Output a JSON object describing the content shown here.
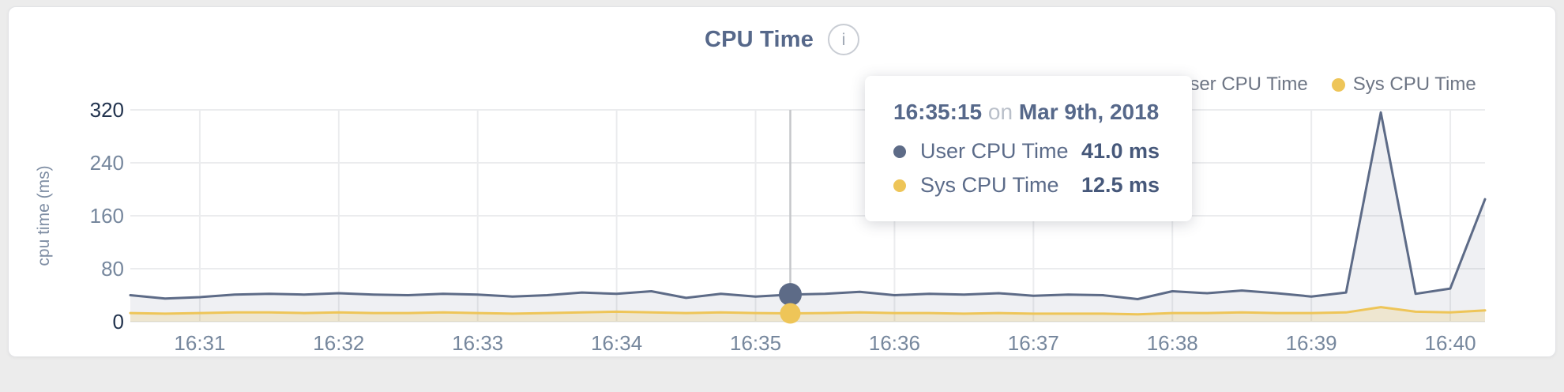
{
  "header": {
    "title": "CPU Time",
    "info_glyph": "i"
  },
  "legend": {
    "items": [
      {
        "label": "User CPU Time",
        "color": "#5d6b87"
      },
      {
        "label": "Sys CPU Time",
        "color": "#eec558"
      }
    ]
  },
  "tooltip": {
    "time": "16:35:15",
    "connector": "on",
    "date": "Mar 9th, 2018",
    "rows": [
      {
        "label": "User CPU Time",
        "value": "41.0 ms",
        "color": "#5d6b87"
      },
      {
        "label": "Sys CPU Time",
        "value": "12.5 ms",
        "color": "#eec558"
      }
    ]
  },
  "chart_data": {
    "type": "area",
    "title": "CPU Time",
    "xlabel": "",
    "ylabel": "cpu time (ms)",
    "ylim": [
      0,
      320
    ],
    "y_ticks": [
      0,
      80,
      160,
      240,
      320
    ],
    "y_ticks_emphasized": [
      0,
      320
    ],
    "grid": true,
    "legend_position": "top-right",
    "x_ticks": [
      {
        "label": "16:31",
        "t": 60
      },
      {
        "label": "16:32",
        "t": 120
      },
      {
        "label": "16:33",
        "t": 180
      },
      {
        "label": "16:34",
        "t": 240
      },
      {
        "label": "16:35",
        "t": 300
      },
      {
        "label": "16:36",
        "t": 360
      },
      {
        "label": "16:37",
        "t": 420
      },
      {
        "label": "16:38",
        "t": 480
      },
      {
        "label": "16:39",
        "t": 540
      },
      {
        "label": "16:40",
        "t": 600
      }
    ],
    "x_seconds_after_1630": [
      30,
      45,
      60,
      75,
      90,
      105,
      120,
      135,
      150,
      165,
      180,
      195,
      210,
      225,
      240,
      255,
      270,
      285,
      300,
      315,
      330,
      345,
      360,
      375,
      390,
      405,
      420,
      435,
      450,
      465,
      480,
      495,
      510,
      525,
      540,
      555,
      570,
      585,
      600,
      615
    ],
    "series": [
      {
        "name": "User CPU Time",
        "color": "#5d6b87",
        "fill": "rgba(99,112,138,0.10)",
        "values": [
          40,
          35,
          37,
          41,
          42,
          41,
          43,
          41,
          40,
          42,
          41,
          38,
          40,
          44,
          42,
          46,
          36,
          42,
          38,
          41,
          42,
          45,
          40,
          42,
          41,
          43,
          39,
          41,
          40,
          34,
          46,
          43,
          47,
          43,
          38,
          44,
          316,
          42,
          50,
          185
        ]
      },
      {
        "name": "Sys CPU Time",
        "color": "#eec558",
        "fill": "rgba(238,197,88,0.22)",
        "values": [
          13,
          12,
          13,
          14,
          14,
          13,
          14,
          13,
          13,
          14,
          13,
          12,
          13,
          14,
          15,
          14,
          13,
          14,
          13,
          12.5,
          13,
          14,
          13,
          13,
          12,
          13,
          12,
          12,
          12,
          11,
          13,
          13,
          14,
          13,
          13,
          14,
          22,
          15,
          14,
          17
        ]
      }
    ],
    "hover": {
      "index": 19,
      "time_label": "16:35:15",
      "date_label": "Mar 9th, 2018",
      "values_ms": [
        41.0,
        12.5
      ]
    }
  },
  "colors": {
    "title": "#56688a",
    "tick_label": "#76879d",
    "tick_label_emphasized": "#22334e",
    "gridline": "#ebecee",
    "crosshair": "#c5c7ca",
    "axis_title": "#7e8da3",
    "page_background": "#ececec",
    "card_background": "#ffffff"
  }
}
